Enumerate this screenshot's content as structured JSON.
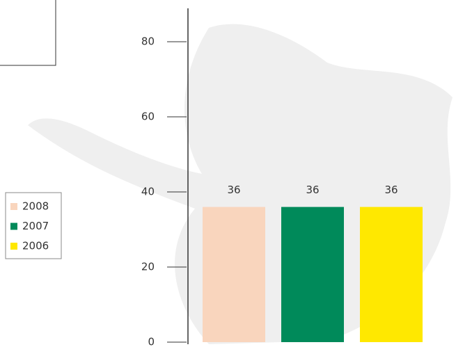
{
  "chart_data": {
    "type": "bar",
    "categories": [
      null
    ],
    "series": [
      {
        "name": "2008",
        "color": "#f9d5bd",
        "values": [
          36
        ]
      },
      {
        "name": "2007",
        "color": "#008a5a",
        "values": [
          36
        ]
      },
      {
        "name": "2006",
        "color": "#ffe800",
        "values": [
          36
        ]
      }
    ],
    "ylim": [
      0,
      89
    ],
    "yticks": [
      0,
      20,
      40,
      60,
      80
    ],
    "legend": "left"
  }
}
